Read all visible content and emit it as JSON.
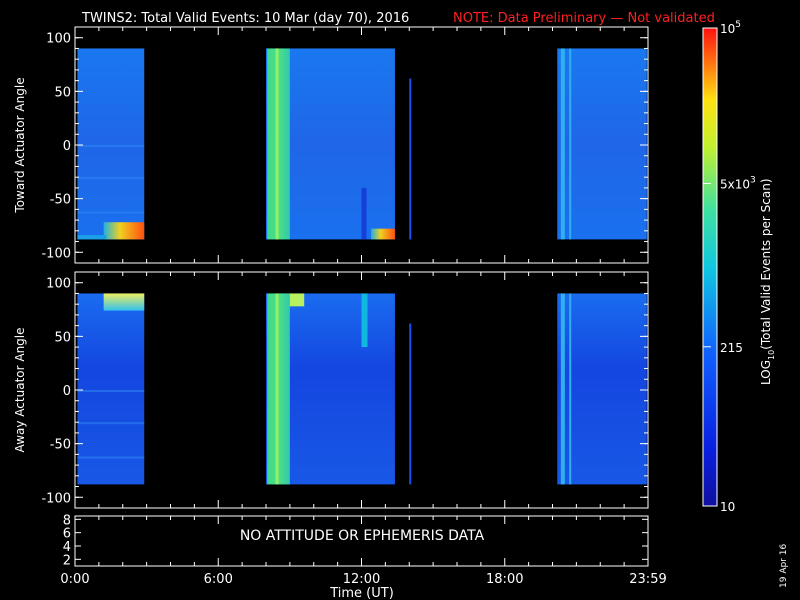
{
  "title": "TWINS2: Total Valid Events: 10 Mar (day  70), 2016",
  "note": "NOTE: Data Preliminary — Not validated",
  "status_message": "NO ATTITUDE OR EPHEMERIS DATA",
  "side_date": "19 Apr 16",
  "colors": {
    "background": "#000000",
    "axis": "#ffffff",
    "note": "#ff2020"
  },
  "chart_data": [
    {
      "type": "heatmap",
      "ylabel": "Toward Actuator Angle",
      "ylim": [
        -110,
        110
      ],
      "y_ticks": [
        "100",
        "50",
        "0",
        "-50",
        "-100"
      ],
      "x_ticks": [
        "0:00",
        "6:00",
        "12:00",
        "18:00",
        "23:59"
      ],
      "data_coverage_hours": [
        [
          0.1,
          2.9
        ],
        [
          8.0,
          13.4
        ],
        [
          14.0,
          14.05
        ],
        [
          20.2,
          23.95
        ]
      ],
      "angle_range": [
        -88,
        90
      ]
    },
    {
      "type": "heatmap",
      "ylabel": "Away Actuator Angle",
      "ylim": [
        -110,
        110
      ],
      "y_ticks": [
        "100",
        "50",
        "0",
        "-50",
        "-100"
      ],
      "x_ticks": [
        "0:00",
        "6:00",
        "12:00",
        "18:00",
        "23:59"
      ],
      "data_coverage_hours": [
        [
          0.1,
          2.9
        ],
        [
          8.0,
          13.4
        ],
        [
          14.0,
          14.05
        ],
        [
          20.2,
          23.95
        ]
      ],
      "angle_range": [
        -88,
        90
      ]
    },
    {
      "type": "line",
      "ylim": [
        1,
        8.5
      ],
      "y_ticks": [
        "8",
        "6",
        "4",
        "2"
      ],
      "x_ticks": [
        "0:00",
        "6:00",
        "12:00",
        "18:00",
        "23:59"
      ],
      "xlabel": "Time (UT)",
      "series": []
    }
  ],
  "colorbar": {
    "label_pre": "LOG",
    "label_sub": "10",
    "label_post": "(Total Valid Events per Scan)",
    "ticks": [
      {
        "base": "10",
        "exp": "5",
        "value": 100000
      },
      {
        "base": "5x10",
        "exp": "3",
        "value": 5000
      },
      {
        "base": "215",
        "exp": "",
        "value": 215
      },
      {
        "base": "10",
        "exp": "",
        "value": 10
      }
    ],
    "range": [
      10,
      100000
    ]
  }
}
